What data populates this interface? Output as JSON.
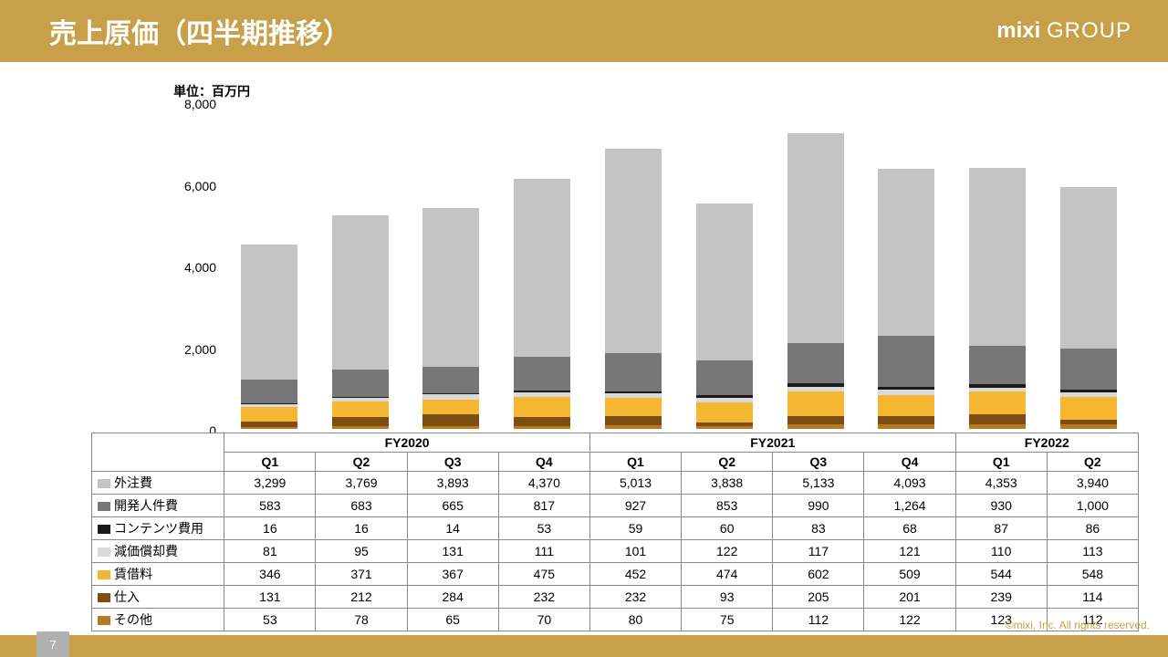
{
  "header": {
    "title": "売上原価（四半期推移）",
    "logo_bold": "mixi",
    "logo_light": "GROUP"
  },
  "unit": "単位：百万円",
  "chart": {
    "type": "stacked-bar",
    "ymax": 8000,
    "yticks": [
      0,
      2000,
      4000,
      6000,
      8000
    ],
    "ylabels": [
      "0",
      "2,000",
      "4,000",
      "6,000",
      "8,000"
    ],
    "fiscal_years": [
      {
        "label": "FY2020",
        "quarters": [
          "Q1",
          "Q2",
          "Q3",
          "Q4"
        ]
      },
      {
        "label": "FY2021",
        "quarters": [
          "Q1",
          "Q2",
          "Q3",
          "Q4"
        ]
      },
      {
        "label": "FY2022",
        "quarters": [
          "Q1",
          "Q2"
        ]
      }
    ],
    "categories": [
      {
        "name": "外注費",
        "color": "#c4c4c4",
        "values": [
          3299,
          3769,
          3893,
          4370,
          5013,
          3838,
          5133,
          4093,
          4353,
          3940
        ],
        "labels": [
          "3,299",
          "3,769",
          "3,893",
          "4,370",
          "5,013",
          "3,838",
          "5,133",
          "4,093",
          "4,353",
          "3,940"
        ]
      },
      {
        "name": "開発人件費",
        "color": "#777777",
        "values": [
          583,
          683,
          665,
          817,
          927,
          853,
          990,
          1264,
          930,
          1000
        ],
        "labels": [
          "583",
          "683",
          "665",
          "817",
          "927",
          "853",
          "990",
          "1,264",
          "930",
          "1,000"
        ]
      },
      {
        "name": "コンテンツ費用",
        "color": "#1a1a1a",
        "values": [
          16,
          16,
          14,
          53,
          59,
          60,
          83,
          68,
          87,
          86
        ],
        "labels": [
          "16",
          "16",
          "14",
          "53",
          "59",
          "60",
          "83",
          "68",
          "87",
          "86"
        ]
      },
      {
        "name": "減価償却費",
        "color": "#d9d9d9",
        "values": [
          81,
          95,
          131,
          111,
          101,
          122,
          117,
          121,
          110,
          113
        ],
        "labels": [
          "81",
          "95",
          "131",
          "111",
          "101",
          "122",
          "117",
          "121",
          "110",
          "113"
        ]
      },
      {
        "name": "賃借料",
        "color": "#f5b732",
        "values": [
          346,
          371,
          367,
          475,
          452,
          474,
          602,
          509,
          544,
          548
        ],
        "labels": [
          "346",
          "371",
          "367",
          "475",
          "452",
          "474",
          "602",
          "509",
          "544",
          "548"
        ]
      },
      {
        "name": "仕入",
        "color": "#7d4e12",
        "values": [
          131,
          212,
          284,
          232,
          232,
          93,
          205,
          201,
          239,
          114
        ],
        "labels": [
          "131",
          "212",
          "284",
          "232",
          "232",
          "93",
          "205",
          "201",
          "239",
          "114"
        ]
      },
      {
        "name": "その他",
        "color": "#b57b1e",
        "values": [
          53,
          78,
          65,
          70,
          80,
          75,
          112,
          122,
          123,
          112
        ],
        "labels": [
          "53",
          "78",
          "65",
          "70",
          "80",
          "75",
          "112",
          "122",
          "123",
          "112"
        ]
      }
    ]
  },
  "footer": {
    "page": "7",
    "copyright": "©mixi, Inc. All rights reserved."
  }
}
